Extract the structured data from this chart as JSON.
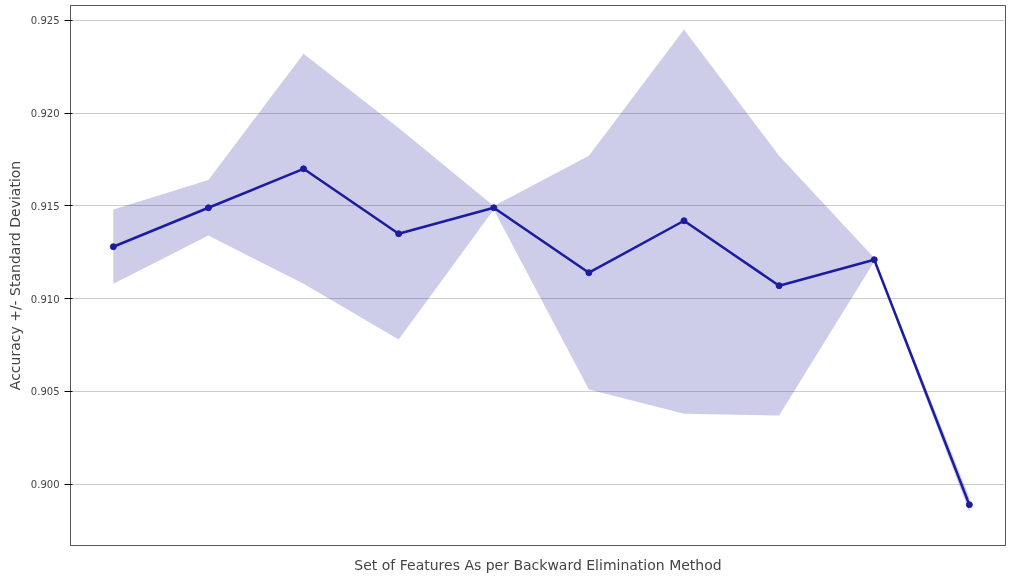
{
  "chart_data": {
    "type": "line",
    "xlabel": "Set of Features As per Backward Elimination Method",
    "ylabel": "Accuracy +/- Standard Deviation",
    "categories": [
      null,
      null,
      null,
      null,
      null,
      null,
      null,
      null,
      null,
      null
    ],
    "series": [
      {
        "color": "#1c1ca0",
        "values": [
          0.9128,
          0.9149,
          0.917,
          0.9135,
          0.9149,
          0.9114,
          0.9142,
          0.9107,
          0.9121,
          0.8989
        ],
        "lower": [
          0.9108,
          0.9134,
          0.9108,
          0.9078,
          0.9148,
          0.9051,
          0.9038,
          0.9037,
          0.912,
          0.8985
        ],
        "upper": [
          0.9148,
          0.9164,
          0.9232,
          0.9192,
          0.915,
          0.9177,
          0.9245,
          0.9177,
          0.9122,
          0.8993
        ]
      }
    ],
    "ylim": [
      0.8967,
      0.9258
    ],
    "yticks": [
      {
        "value": 0.9,
        "label": "0.900"
      },
      0.905,
      {
        "value": 0.91,
        "label": "0.910"
      },
      0.915,
      {
        "value": 0.92,
        "label": "0.920"
      },
      0.925
    ],
    "grid": "y",
    "marker": "circle",
    "line_style": "solid"
  }
}
